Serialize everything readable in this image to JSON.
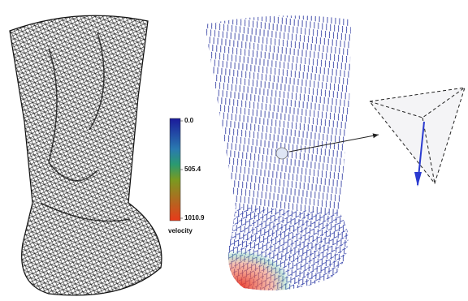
{
  "colorbar": {
    "label": "velocity",
    "ticks": [
      {
        "value": 0,
        "label": "0.0"
      },
      {
        "value": 505.4,
        "label": "505.4"
      },
      {
        "value": 1010.9,
        "label": "1010.9"
      }
    ]
  }
}
